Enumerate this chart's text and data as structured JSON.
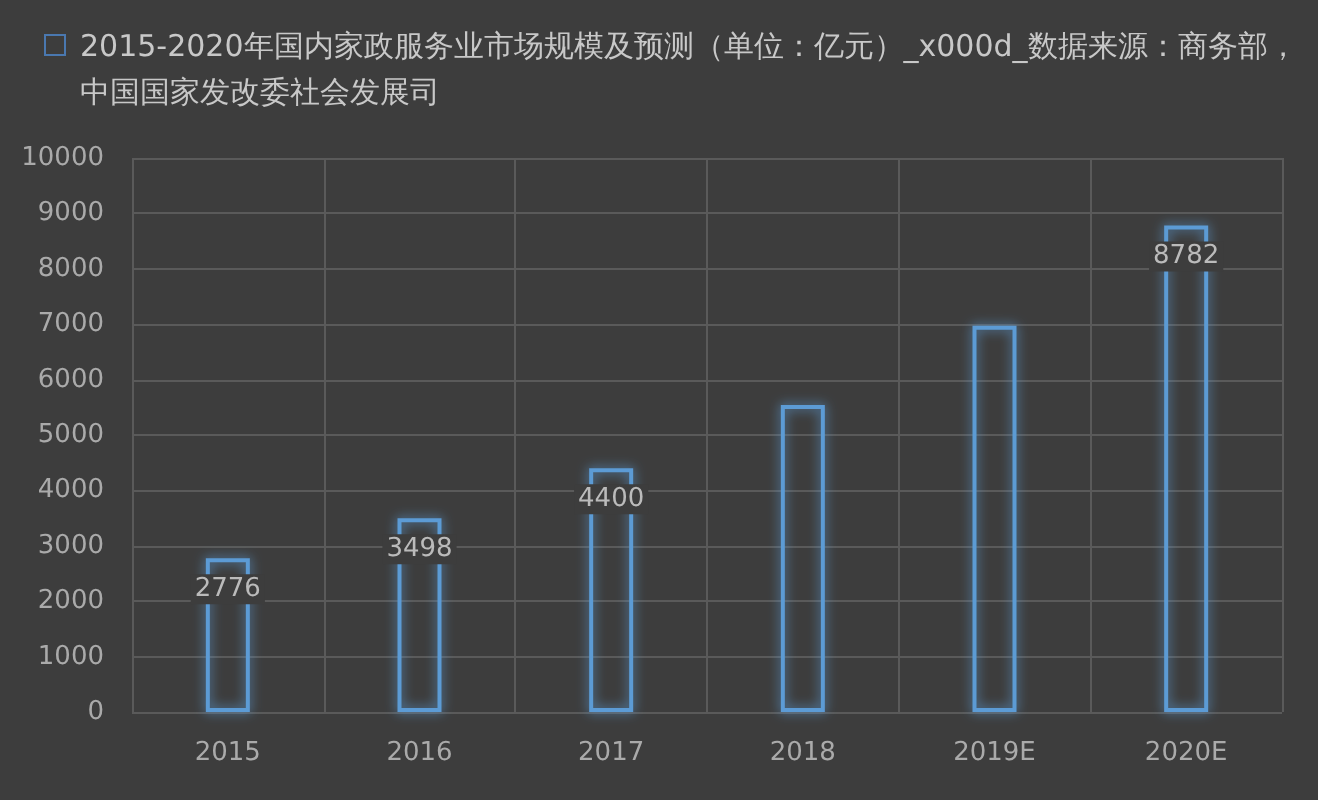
{
  "chart_data": {
    "type": "bar",
    "title": "2015-2020年国内家政服务业市场规模及预测（单位：亿元）_x000d_数据来源：商务部，中国国家发改委社会发展司",
    "categories": [
      "2015",
      "2016",
      "2017",
      "2018",
      "2019E",
      "2020E"
    ],
    "values": [
      2776,
      3498,
      4400,
      5540,
      6970,
      8782
    ],
    "value_labels": [
      "2776",
      "3498",
      "4400",
      null,
      null,
      "8782"
    ],
    "color": "#5b9bd5",
    "ylim": [
      0,
      10000
    ],
    "yticks": [
      0,
      1000,
      2000,
      3000,
      4000,
      5000,
      6000,
      7000,
      8000,
      9000,
      10000
    ],
    "grid": true
  }
}
